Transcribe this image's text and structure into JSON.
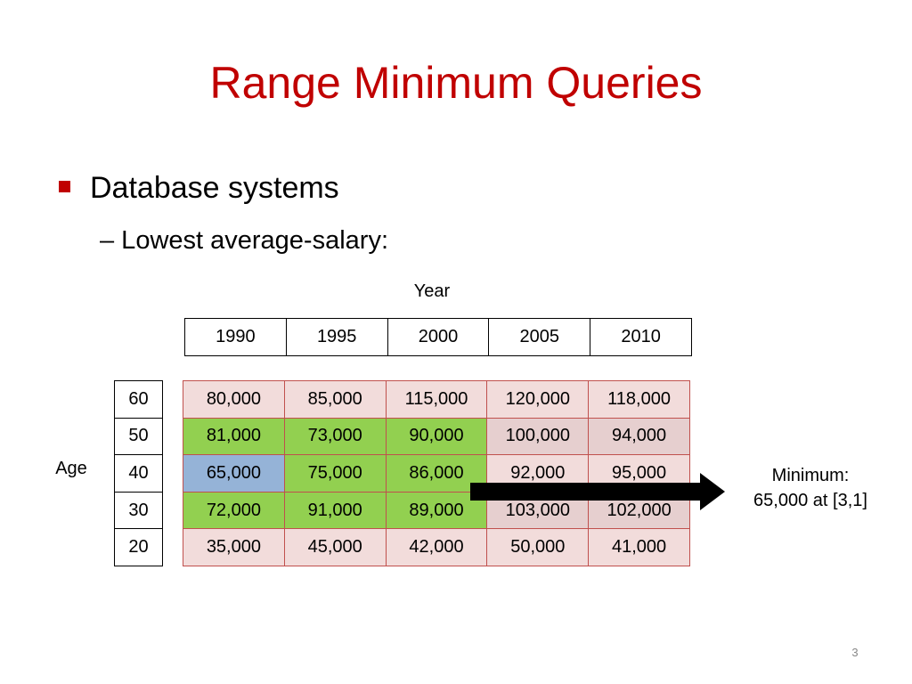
{
  "slide": {
    "title": "Range Minimum Queries",
    "bullets": [
      {
        "text": "Database systems",
        "sub": [
          "– Lowest average-salary:"
        ]
      }
    ],
    "column_header": "Year",
    "years": [
      "1990",
      "1995",
      "2000",
      "2005",
      "2010"
    ],
    "row_header": "Age",
    "ages": [
      "60",
      "50",
      "40",
      "30",
      "20"
    ],
    "table": {
      "rows": [
        [
          "80,000",
          "85,000",
          "115,000",
          "120,000",
          "118,000"
        ],
        [
          "81,000",
          "73,000",
          "90,000",
          "100,000",
          "94,000"
        ],
        [
          "65,000",
          "75,000",
          "86,000",
          "92,000",
          "95,000"
        ],
        [
          "72,000",
          "91,000",
          "89,000",
          "103,000",
          "102,000"
        ],
        [
          "35,000",
          "45,000",
          "42,000",
          "50,000",
          "41,000"
        ]
      ],
      "cell_colors": [
        [
          "#f2dcdb",
          "#f2dcdb",
          "#f2dcdb",
          "#f2dcdb",
          "#f2dcdb"
        ],
        [
          "#92d050",
          "#92d050",
          "#92d050",
          "#e6cfcf",
          "#e6cfcf"
        ],
        [
          "#95b3d7",
          "#92d050",
          "#92d050",
          "#f2dcdb",
          "#f2dcdb"
        ],
        [
          "#92d050",
          "#92d050",
          "#92d050",
          "#e6cfcf",
          "#e6cfcf"
        ],
        [
          "#f2dcdb",
          "#f2dcdb",
          "#f2dcdb",
          "#f2dcdb",
          "#f2dcdb"
        ]
      ]
    },
    "note": [
      "Minimum:",
      "65,000 at [3,1]"
    ],
    "page_number": "3"
  }
}
